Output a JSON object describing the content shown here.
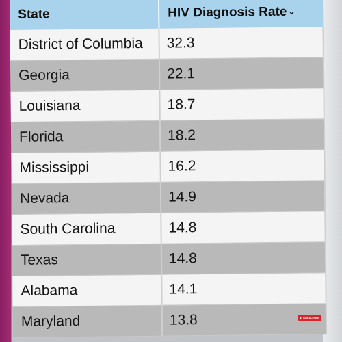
{
  "table": {
    "headers": [
      "State",
      "HIV Diagnosis Rate"
    ],
    "sort_indicator": "⌄",
    "rows": [
      {
        "state": "District of Columbia",
        "rate": "32.3"
      },
      {
        "state": "Georgia",
        "rate": "22.1"
      },
      {
        "state": "Louisiana",
        "rate": "18.7"
      },
      {
        "state": "Florida",
        "rate": "18.2"
      },
      {
        "state": "Mississippi",
        "rate": "16.2"
      },
      {
        "state": "Nevada",
        "rate": "14.9"
      },
      {
        "state": "South Carolina",
        "rate": "14.8"
      },
      {
        "state": "Texas",
        "rate": "14.8"
      },
      {
        "state": "Alabama",
        "rate": "14.1"
      },
      {
        "state": "Maryland",
        "rate": "13.8"
      }
    ]
  },
  "overlay": {
    "subscribe_label": "SUBSCRIBE",
    "subscribe_color": "#d8232a"
  },
  "colors": {
    "header_bg": "#a9d3ec",
    "row_light": "#f4f4f4",
    "row_dark": "#b9b9b9"
  }
}
